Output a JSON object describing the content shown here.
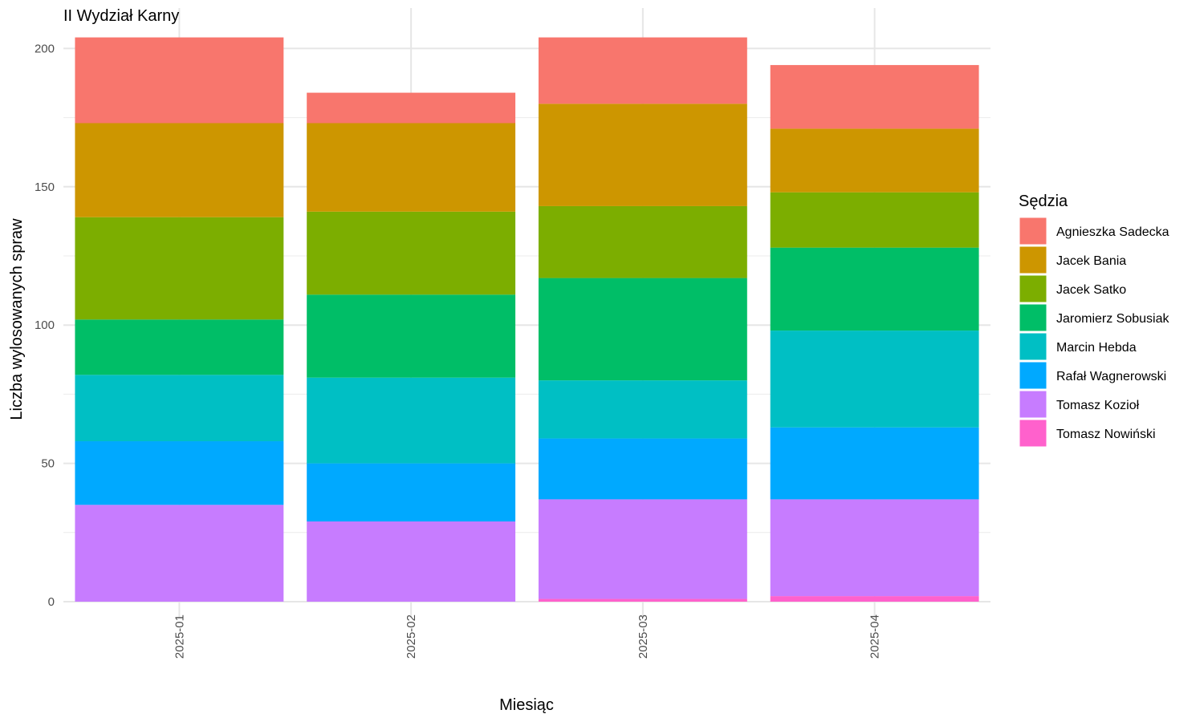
{
  "chart_data": {
    "type": "bar",
    "stacked": true,
    "title": "II Wydział Karny",
    "xlabel": "Miesiąc",
    "ylabel": "Liczba wylosowanych spraw",
    "categories": [
      "2025-01",
      "2025-02",
      "2025-03",
      "2025-04"
    ],
    "ylim": [
      0,
      204
    ],
    "yticks": [
      0,
      50,
      100,
      150,
      200
    ],
    "grid": true,
    "legend": {
      "title": "Sędzia",
      "position": "right"
    },
    "series": [
      {
        "name": "Tomasz Nowiński",
        "color": "#FF61CC",
        "values": [
          0,
          0,
          1,
          2
        ]
      },
      {
        "name": "Tomasz Kozioł",
        "color": "#C77CFF",
        "values": [
          35,
          29,
          36,
          35
        ]
      },
      {
        "name": "Rafał Wagnerowski",
        "color": "#00A9FF",
        "values": [
          23,
          21,
          22,
          26
        ]
      },
      {
        "name": "Marcin Hebda",
        "color": "#00BFC4",
        "values": [
          24,
          31,
          21,
          35
        ]
      },
      {
        "name": "Jaromierz Sobusiak",
        "color": "#00BE67",
        "values": [
          20,
          30,
          37,
          30
        ]
      },
      {
        "name": "Jacek Satko",
        "color": "#7CAE00",
        "values": [
          37,
          30,
          26,
          20
        ]
      },
      {
        "name": "Jacek Bania",
        "color": "#CD9600",
        "values": [
          34,
          32,
          37,
          23
        ]
      },
      {
        "name": "Agnieszka Sadecka",
        "color": "#F8766D",
        "values": [
          31,
          11,
          24,
          23
        ]
      }
    ],
    "legend_order": [
      "Agnieszka Sadecka",
      "Jacek Bania",
      "Jacek Satko",
      "Jaromierz Sobusiak",
      "Marcin Hebda",
      "Rafał Wagnerowski",
      "Tomasz Kozioł",
      "Tomasz Nowiński"
    ]
  }
}
